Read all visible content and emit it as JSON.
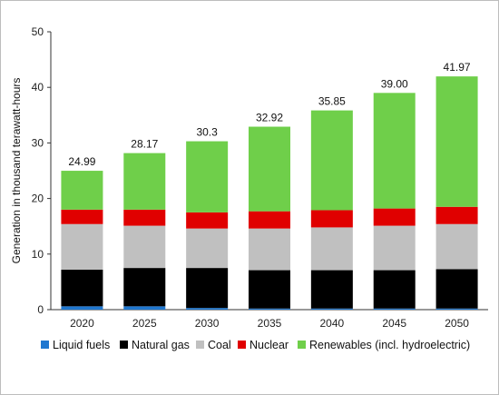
{
  "chart_data": {
    "type": "bar",
    "stacked": true,
    "title": "",
    "xlabel": "",
    "ylabel": "Generation in thousand terawatt-hours",
    "ylim": [
      0,
      50
    ],
    "yticks": [
      0,
      10,
      20,
      30,
      40,
      50
    ],
    "grid": false,
    "legend_position": "bottom",
    "categories": [
      "2020",
      "2025",
      "2030",
      "2035",
      "2040",
      "2045",
      "2050"
    ],
    "series": [
      {
        "name": "Liquid fuels",
        "color": "#1f77d0",
        "values": [
          0.6,
          0.6,
          0.3,
          0.2,
          0.2,
          0.2,
          0.2
        ]
      },
      {
        "name": "Natural gas",
        "color": "#000000",
        "values": [
          6.6,
          6.9,
          7.2,
          6.9,
          6.9,
          6.9,
          7.1
        ]
      },
      {
        "name": "Coal",
        "color": "#c0c0c0",
        "values": [
          8.2,
          7.6,
          7.1,
          7.5,
          7.7,
          8.0,
          8.1
        ]
      },
      {
        "name": "Nuclear",
        "color": "#e00000",
        "values": [
          2.6,
          2.9,
          2.9,
          3.1,
          3.1,
          3.1,
          3.1
        ]
      },
      {
        "name": "Renewables (incl. hydroelectric)",
        "color": "#6fcf4a",
        "values": [
          6.99,
          10.17,
          12.8,
          15.22,
          17.95,
          20.8,
          23.47
        ]
      }
    ],
    "totals": [
      "24.99",
      "28.17",
      "30.3",
      "32.92",
      "35.85",
      "39.00",
      "41.97"
    ]
  }
}
